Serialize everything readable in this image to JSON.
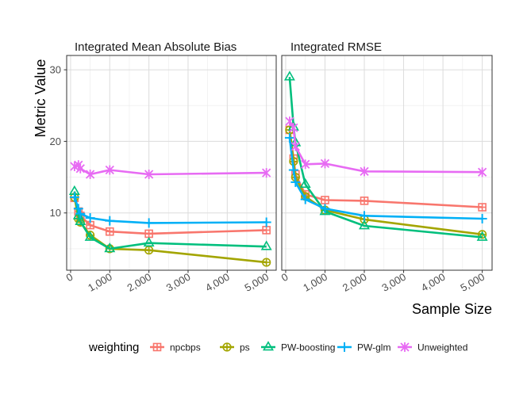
{
  "chart_data": {
    "type": "line",
    "ylabel": "Metric Value",
    "xlabel": "Sample Size",
    "xlim": [
      -100,
      5250
    ],
    "ylim": [
      2,
      32
    ],
    "x_ticks": [
      0,
      1000,
      2000,
      3000,
      4000,
      5000
    ],
    "x_tick_labels": [
      "0",
      "1,000",
      "2,000",
      "3,000",
      "4,000",
      "5,000"
    ],
    "y_ticks": [
      10,
      20,
      30
    ],
    "y_tick_labels": [
      "10",
      "20",
      "30"
    ],
    "legend": {
      "title": "weighting",
      "position": "bottom",
      "entries": [
        "npcbps",
        "ps",
        "PW-boosting",
        "PW-glm",
        "Unweighted"
      ]
    },
    "series_styles": [
      {
        "name": "npcbps",
        "color": "#F8766D",
        "marker": "square-cross"
      },
      {
        "name": "ps",
        "color": "#A3A500",
        "marker": "circle-plus"
      },
      {
        "name": "PW-boosting",
        "color": "#00BF7D",
        "marker": "triangle"
      },
      {
        "name": "PW-glm",
        "color": "#00B0F6",
        "marker": "plus"
      },
      {
        "name": "Unweighted",
        "color": "#E76BF3",
        "marker": "asterisk"
      }
    ],
    "panels": [
      {
        "title": "Integrated Mean Absolute Bias",
        "series": [
          {
            "name": "npcbps",
            "x": [
              100,
              200,
              250,
              500,
              1000,
              2000,
              5000
            ],
            "y": [
              12.1,
              10.2,
              9.6,
              8.3,
              7.4,
              7.1,
              7.6
            ]
          },
          {
            "name": "ps",
            "x": [
              100,
              200,
              250,
              500,
              1000,
              2000,
              5000
            ],
            "y": [
              12.2,
              9.2,
              8.7,
              6.9,
              5.0,
              4.8,
              3.1
            ]
          },
          {
            "name": "PW-boosting",
            "x": [
              100,
              200,
              250,
              500,
              1000,
              2000,
              5000
            ],
            "y": [
              13.0,
              9.6,
              8.8,
              6.6,
              5.0,
              5.8,
              5.3
            ]
          },
          {
            "name": "PW-glm",
            "x": [
              100,
              200,
              250,
              500,
              1000,
              2000,
              5000
            ],
            "y": [
              12.2,
              10.6,
              9.9,
              9.3,
              8.9,
              8.6,
              8.7
            ]
          },
          {
            "name": "Unweighted",
            "x": [
              100,
              200,
              250,
              500,
              1000,
              2000,
              5000
            ],
            "y": [
              16.5,
              16.7,
              16.2,
              15.4,
              16.0,
              15.4,
              15.6
            ]
          }
        ]
      },
      {
        "title": "Integrated RMSE",
        "series": [
          {
            "name": "npcbps",
            "x": [
              100,
              200,
              250,
              500,
              1000,
              2000,
              5000
            ],
            "y": [
              21.6,
              17.6,
              15.4,
              12.6,
              11.8,
              11.7,
              10.8
            ]
          },
          {
            "name": "ps",
            "x": [
              100,
              200,
              250,
              500,
              1000,
              2000,
              5000
            ],
            "y": [
              21.6,
              17.2,
              15.0,
              12.3,
              10.4,
              9.1,
              7.0
            ]
          },
          {
            "name": "PW-boosting",
            "x": [
              100,
              200,
              250,
              500,
              1000,
              2000,
              5000
            ],
            "y": [
              29.0,
              22.0,
              19.8,
              14.0,
              10.2,
              8.2,
              6.6
            ]
          },
          {
            "name": "PW-glm",
            "x": [
              100,
              200,
              250,
              500,
              1000,
              2000,
              5000
            ],
            "y": [
              20.5,
              16.0,
              14.3,
              11.9,
              10.6,
              9.6,
              9.2
            ]
          },
          {
            "name": "Unweighted",
            "x": [
              100,
              200,
              250,
              500,
              1000,
              2000,
              5000
            ],
            "y": [
              22.8,
              21.9,
              19.3,
              16.8,
              16.9,
              15.8,
              15.7
            ]
          }
        ]
      }
    ]
  }
}
